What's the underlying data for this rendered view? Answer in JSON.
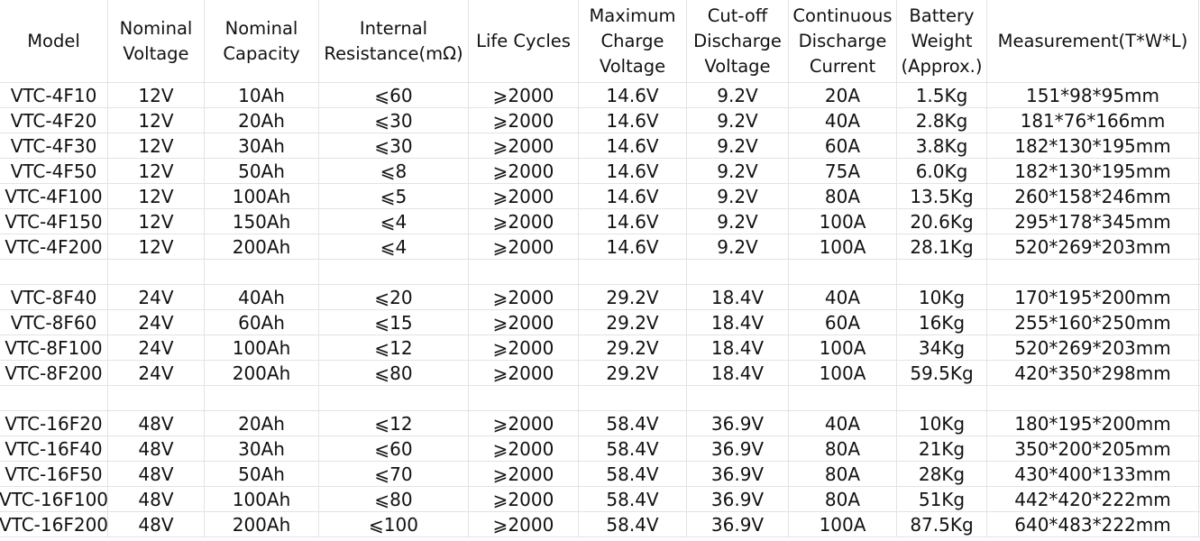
{
  "headers": [
    "Model",
    "Nominal\nVoltage",
    "Nominal\nCapacity",
    "Internal\nResistance(mΩ)",
    "Life Cycles",
    "Maximum\nCharge\nVoltage",
    "Cut-off\nDischarge\nVoltage",
    "Continuous\nDischarge\nCurrent",
    "Battery\nWeight\n(Approx.)",
    "Measurement(T*W*L)"
  ],
  "rows": [
    [
      "VTC-4F10",
      "12V",
      "10Ah",
      "⩽60",
      "⩾2000",
      "14.6V",
      "9.2V",
      "20A",
      "1.5Kg",
      "151*98*95mm"
    ],
    [
      "VTC-4F20",
      "12V",
      "20Ah",
      "⩽30",
      "⩾2000",
      "14.6V",
      "9.2V",
      "40A",
      "2.8Kg",
      "181*76*166mm"
    ],
    [
      "VTC-4F30",
      "12V",
      "30Ah",
      "⩽30",
      "⩾2000",
      "14.6V",
      "9.2V",
      "60A",
      "3.8Kg",
      "182*130*195mm"
    ],
    [
      "VTC-4F50",
      "12V",
      "50Ah",
      "⩽8",
      "⩾2000",
      "14.6V",
      "9.2V",
      "75A",
      "6.0Kg",
      "182*130*195mm"
    ],
    [
      "VTC-4F100",
      "12V",
      "100Ah",
      "⩽5",
      "⩾2000",
      "14.6V",
      "9.2V",
      "80A",
      "13.5Kg",
      "260*158*246mm"
    ],
    [
      "VTC-4F150",
      "12V",
      "150Ah",
      "⩽4",
      "⩾2000",
      "14.6V",
      "9.2V",
      "100A",
      "20.6Kg",
      "295*178*345mm"
    ],
    [
      "VTC-4F200",
      "12V",
      "200Ah",
      "⩽4",
      "⩾2000",
      "14.6V",
      "9.2V",
      "100A",
      "28.1Kg",
      "520*269*203mm"
    ],
    [],
    [
      "VTC-8F40",
      "24V",
      "40Ah",
      "⩽20",
      "⩾2000",
      "29.2V",
      "18.4V",
      "40A",
      "10Kg",
      "170*195*200mm"
    ],
    [
      "VTC-8F60",
      "24V",
      "60Ah",
      "⩽15",
      "⩾2000",
      "29.2V",
      "18.4V",
      "60A",
      "16Kg",
      "255*160*250mm"
    ],
    [
      "VTC-8F100",
      "24V",
      "100Ah",
      "⩽12",
      "⩾2000",
      "29.2V",
      "18.4V",
      "100A",
      "34Kg",
      "520*269*203mm"
    ],
    [
      "VTC-8F200",
      "24V",
      "200Ah",
      "⩽80",
      "⩾2000",
      "29.2V",
      "18.4V",
      "100A",
      "59.5Kg",
      "420*350*298mm"
    ],
    [],
    [
      "VTC-16F20",
      "48V",
      "20Ah",
      "⩽12",
      "⩾2000",
      "58.4V",
      "36.9V",
      "40A",
      "10Kg",
      "180*195*200mm"
    ],
    [
      "VTC-16F40",
      "48V",
      "30Ah",
      "⩽60",
      "⩾2000",
      "58.4V",
      "36.9V",
      "80A",
      "21Kg",
      "350*200*205mm"
    ],
    [
      "VTC-16F50",
      "48V",
      "50Ah",
      "⩽70",
      "⩾2000",
      "58.4V",
      "36.9V",
      "80A",
      "28Kg",
      "430*400*133mm"
    ],
    [
      "VTC-16F100",
      "48V",
      "100Ah",
      "⩽80",
      "⩾2000",
      "58.4V",
      "36.9V",
      "80A",
      "51Kg",
      "442*420*222mm"
    ],
    [
      "VTC-16F200",
      "48V",
      "200Ah",
      "⩽100",
      "⩾2000",
      "58.4V",
      "36.9V",
      "100A",
      "87.5Kg",
      "640*483*222mm"
    ]
  ]
}
